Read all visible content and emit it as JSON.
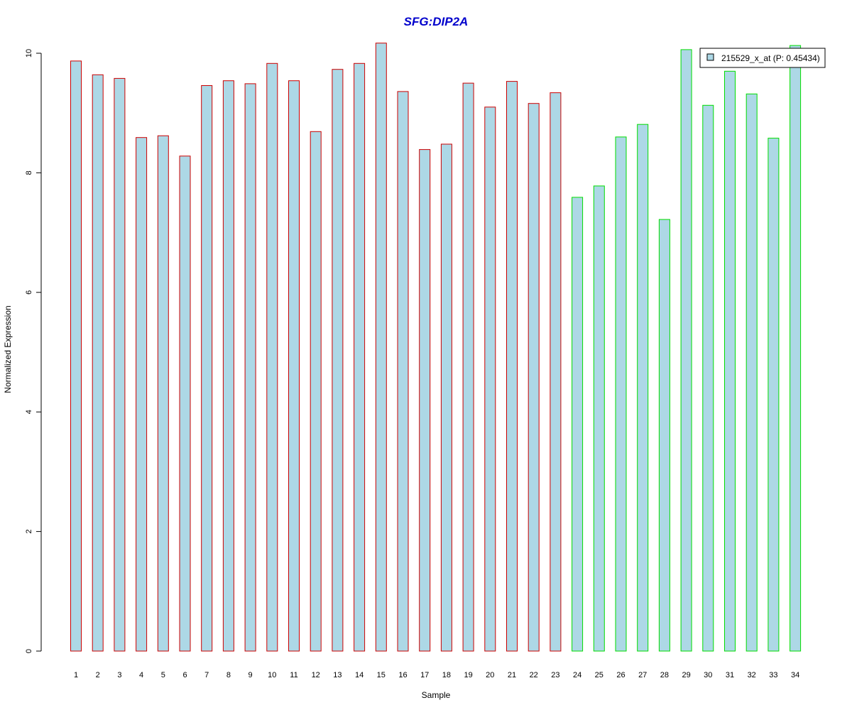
{
  "chart_data": {
    "type": "bar",
    "title": "SFG:DIP2A",
    "xlabel": "Sample",
    "ylabel": "Normalized Expression",
    "ylim": [
      0,
      10.2
    ],
    "yticks": [
      0,
      2,
      4,
      6,
      8,
      10
    ],
    "categories": [
      "1",
      "2",
      "3",
      "4",
      "5",
      "6",
      "7",
      "8",
      "9",
      "10",
      "11",
      "12",
      "13",
      "14",
      "15",
      "16",
      "17",
      "18",
      "19",
      "20",
      "21",
      "22",
      "23",
      "24",
      "25",
      "26",
      "27",
      "28",
      "29",
      "30",
      "31",
      "32",
      "33",
      "34"
    ],
    "series": [
      {
        "name": "215529_x_at (P: 0.45434)",
        "values": [
          9.87,
          9.64,
          9.58,
          8.59,
          8.62,
          8.28,
          9.46,
          9.54,
          9.49,
          9.83,
          9.54,
          8.69,
          9.73,
          9.83,
          10.17,
          9.36,
          8.39,
          8.48,
          9.5,
          9.1,
          9.53,
          9.16,
          9.34,
          7.59,
          7.78,
          8.6,
          8.81,
          7.22,
          10.06,
          9.13,
          9.7,
          9.32,
          8.58,
          10.13
        ]
      }
    ],
    "group_colors": [
      "#cc0000",
      "#cc0000",
      "#cc0000",
      "#cc0000",
      "#cc0000",
      "#cc0000",
      "#cc0000",
      "#cc0000",
      "#cc0000",
      "#cc0000",
      "#cc0000",
      "#cc0000",
      "#cc0000",
      "#cc0000",
      "#cc0000",
      "#cc0000",
      "#cc0000",
      "#cc0000",
      "#cc0000",
      "#cc0000",
      "#cc0000",
      "#cc0000",
      "#cc0000",
      "#00dd00",
      "#00dd00",
      "#00dd00",
      "#00dd00",
      "#00dd00",
      "#00dd00",
      "#00dd00",
      "#00dd00",
      "#00dd00",
      "#00dd00",
      "#00dd00"
    ],
    "bar_fill": "#add8e6",
    "title_color": "#0000cc",
    "legend_position": "top-right",
    "grid": false
  }
}
